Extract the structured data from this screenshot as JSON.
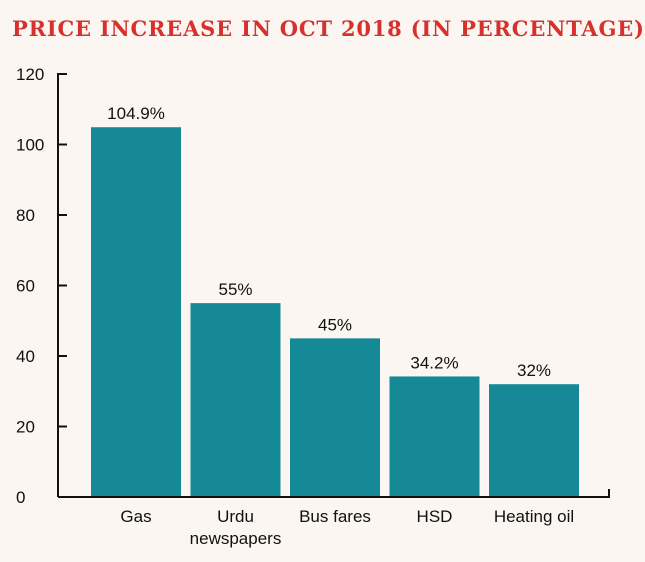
{
  "chart_data": {
    "type": "bar",
    "title": "PRICE INCREASE IN OCT 2018 (IN PERCENTAGE)",
    "categories": [
      "Gas",
      "Urdu newspapers",
      "Bus fares",
      "HSD",
      "Heating oil"
    ],
    "category_lines": [
      [
        "Gas"
      ],
      [
        "Urdu",
        "newspapers"
      ],
      [
        "Bus fares"
      ],
      [
        "HSD"
      ],
      [
        "Heating oil"
      ]
    ],
    "values": [
      104.9,
      55,
      45,
      34.2,
      32
    ],
    "data_labels": [
      "104.9%",
      "55%",
      "45%",
      "34.2%",
      "32%"
    ],
    "yticks": [
      "0",
      "20",
      "40",
      "60",
      "80",
      "100",
      "120"
    ],
    "xlabel": "",
    "ylabel": "",
    "ylim": [
      0,
      120
    ],
    "grid": false,
    "bar_color": "#158a96",
    "title_color": "#d7312e"
  }
}
